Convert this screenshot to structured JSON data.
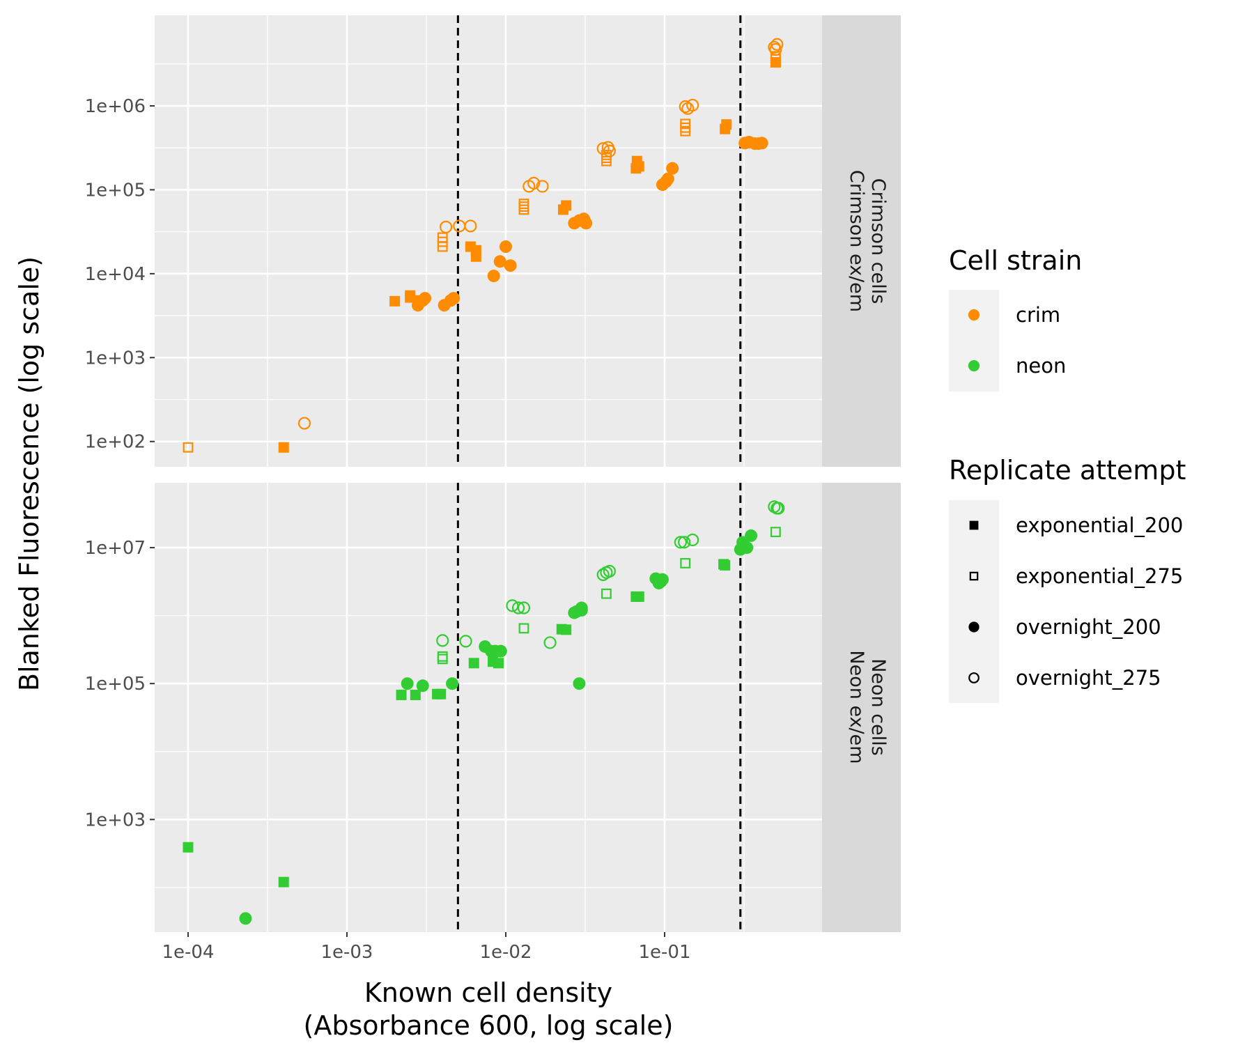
{
  "chart_data": {
    "type": "scatter",
    "xlabel": [
      "Known cell density",
      "(Absorbance 600, log scale)"
    ],
    "ylabel": "Blanked Fluorescence (log scale)",
    "x_scale": "log10",
    "y_scale": "log10",
    "xlim": [
      6.16e-05,
      0.98
    ],
    "x_ticks": [
      0.0001,
      0.001,
      0.01,
      0.1
    ],
    "x_tick_labels": [
      "1e-04",
      "1e-03",
      "1e-02",
      "1e-01"
    ],
    "vlines": [
      0.005,
      0.3
    ],
    "vline_style": "dashed black",
    "grid": true,
    "legend": {
      "placement": "right",
      "color_title": "Cell strain",
      "colors": [
        {
          "name": "crim",
          "color": "#FF8C00"
        },
        {
          "name": "neon",
          "color": "#32CD32"
        }
      ],
      "shape_title": "Replicate attempt",
      "shapes": [
        {
          "name": "exponential_200",
          "shape": "square-filled"
        },
        {
          "name": "exponential_275",
          "shape": "square-open"
        },
        {
          "name": "overnight_200",
          "shape": "circle-filled"
        },
        {
          "name": "overnight_275",
          "shape": "circle-open"
        }
      ]
    },
    "panels": [
      {
        "strip_lines": [
          "Crimson cells",
          "Crimson ex/em"
        ],
        "color": "#FF8C00",
        "ylim": [
          50,
          12000000
        ],
        "y_ticks": [
          100,
          1000,
          10000,
          100000,
          1000000
        ],
        "y_tick_labels": [
          "1e+02",
          "1e+03",
          "1e+04",
          "1e+05",
          "1e+06"
        ],
        "series": [
          {
            "name": "exponential_200",
            "shape": "square-filled",
            "points": [
              [
                0.0004,
                85
              ],
              [
                0.002,
                4700
              ],
              [
                0.0025,
                5200
              ],
              [
                0.0025,
                5500
              ],
              [
                0.0029,
                4800
              ],
              [
                0.006,
                21000
              ],
              [
                0.0065,
                19000
              ],
              [
                0.0065,
                16000
              ],
              [
                0.023,
                58000
              ],
              [
                0.024,
                65000
              ],
              [
                0.066,
                180000
              ],
              [
                0.067,
                220000
              ],
              [
                0.069,
                190000
              ],
              [
                0.24,
                530000
              ],
              [
                0.245,
                600000
              ],
              [
                0.5,
                3300000
              ]
            ]
          },
          {
            "name": "exponential_275",
            "shape": "square-open",
            "points": [
              [
                0.0001,
                85
              ],
              [
                0.004,
                21000
              ],
              [
                0.004,
                24000
              ],
              [
                0.004,
                27000
              ],
              [
                0.013,
                58000
              ],
              [
                0.013,
                63000
              ],
              [
                0.013,
                68000
              ],
              [
                0.043,
                220000
              ],
              [
                0.043,
                240000
              ],
              [
                0.043,
                260000
              ],
              [
                0.135,
                500000
              ],
              [
                0.135,
                550000
              ],
              [
                0.135,
                610000
              ],
              [
                0.5,
                3300000
              ],
              [
                0.5,
                3600000
              ],
              [
                0.5,
                3900000
              ]
            ]
          },
          {
            "name": "overnight_200",
            "shape": "circle-filled",
            "points": [
              [
                0.0028,
                4200
              ],
              [
                0.003,
                4800
              ],
              [
                0.0031,
                5100
              ],
              [
                0.0041,
                4200
              ],
              [
                0.0045,
                4800
              ],
              [
                0.0047,
                5100
              ],
              [
                0.0084,
                9400
              ],
              [
                0.0092,
                14000
              ],
              [
                0.01,
                21000
              ],
              [
                0.0107,
                12500
              ],
              [
                0.027,
                40000
              ],
              [
                0.029,
                43000
              ],
              [
                0.031,
                45000
              ],
              [
                0.032,
                40000
              ],
              [
                0.097,
                115000
              ],
              [
                0.102,
                125000
              ],
              [
                0.105,
                135000
              ],
              [
                0.112,
                180000
              ],
              [
                0.32,
                360000
              ],
              [
                0.34,
                370000
              ],
              [
                0.37,
                355000
              ],
              [
                0.39,
                355000
              ],
              [
                0.41,
                360000
              ]
            ]
          },
          {
            "name": "overnight_275",
            "shape": "circle-open",
            "points": [
              [
                0.00054,
                165
              ],
              [
                0.0042,
                36000
              ],
              [
                0.0051,
                37000
              ],
              [
                0.006,
                37000
              ],
              [
                0.014,
                110000
              ],
              [
                0.015,
                120000
              ],
              [
                0.017,
                110000
              ],
              [
                0.041,
                310000
              ],
              [
                0.044,
                320000
              ],
              [
                0.045,
                290000
              ],
              [
                0.135,
                980000
              ],
              [
                0.14,
                930000
              ],
              [
                0.15,
                1020000
              ],
              [
                0.49,
                5000000
              ],
              [
                0.5,
                4700000
              ],
              [
                0.51,
                5400000
              ]
            ]
          }
        ]
      },
      {
        "strip_lines": [
          "Neon cells",
          "Neon ex/em"
        ],
        "color": "#32CD32",
        "ylim": [
          22,
          90000000
        ],
        "y_ticks": [
          1000,
          100000,
          10000000
        ],
        "y_tick_labels": [
          "1e+03",
          "1e+05",
          "1e+07"
        ],
        "series": [
          {
            "name": "exponential_200",
            "shape": "square-filled",
            "points": [
              [
                0.0001,
                390
              ],
              [
                0.0004,
                120
              ],
              [
                0.0022,
                68000
              ],
              [
                0.0027,
                68000
              ],
              [
                0.0037,
                70000
              ],
              [
                0.0039,
                70000
              ],
              [
                0.0063,
                200000
              ],
              [
                0.0083,
                210000
              ],
              [
                0.009,
                200000
              ],
              [
                0.0225,
                630000
              ],
              [
                0.024,
                620000
              ],
              [
                0.066,
                1900000
              ],
              [
                0.069,
                1900000
              ],
              [
                0.235,
                5700000
              ],
              [
                0.24,
                5500000
              ]
            ]
          },
          {
            "name": "exponential_275",
            "shape": "square-open",
            "points": [
              [
                0.004,
                230000
              ],
              [
                0.004,
                250000
              ],
              [
                0.013,
                650000
              ],
              [
                0.043,
                2100000
              ],
              [
                0.135,
                5900000
              ],
              [
                0.5,
                17000000
              ]
            ]
          },
          {
            "name": "overnight_200",
            "shape": "circle-filled",
            "points": [
              [
                0.00023,
                35
              ],
              [
                0.0024,
                100000
              ],
              [
                0.003,
                93000
              ],
              [
                0.0046,
                100000
              ],
              [
                0.0074,
                350000
              ],
              [
                0.0081,
                300000
              ],
              [
                0.0086,
                300000
              ],
              [
                0.0093,
                300000
              ],
              [
                0.027,
                1100000
              ],
              [
                0.028,
                1150000
              ],
              [
                0.029,
                100000
              ],
              [
                0.03,
                1300000
              ],
              [
                0.03,
                1200000
              ],
              [
                0.088,
                3500000
              ],
              [
                0.092,
                3000000
              ],
              [
                0.095,
                3200000
              ],
              [
                0.097,
                3400000
              ],
              [
                0.3,
                9400000
              ],
              [
                0.31,
                12000000
              ],
              [
                0.33,
                10000000
              ],
              [
                0.35,
                15000000
              ]
            ]
          },
          {
            "name": "overnight_275",
            "shape": "circle-open",
            "points": [
              [
                0.004,
                430000
              ],
              [
                0.0056,
                420000
              ],
              [
                0.011,
                1400000
              ],
              [
                0.012,
                1300000
              ],
              [
                0.013,
                1300000
              ],
              [
                0.019,
                400000
              ],
              [
                0.041,
                4000000
              ],
              [
                0.043,
                4300000
              ],
              [
                0.045,
                4500000
              ],
              [
                0.126,
                12000000
              ],
              [
                0.133,
                12000000
              ],
              [
                0.15,
                13000000
              ],
              [
                0.49,
                40000000
              ],
              [
                0.51,
                38000000
              ],
              [
                0.52,
                38000000
              ]
            ]
          }
        ]
      }
    ]
  }
}
